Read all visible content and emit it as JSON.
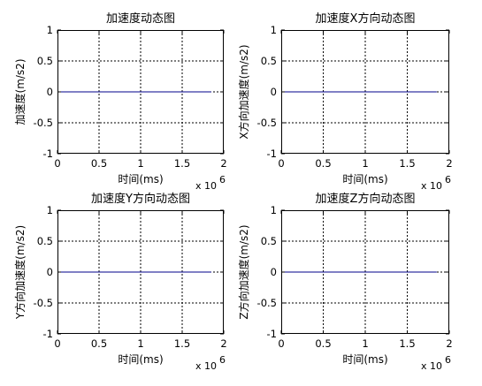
{
  "figure": {
    "background": "#ffffff",
    "line_color": "#00008b"
  },
  "chart_data": [
    {
      "type": "line",
      "title": "加速度动态图",
      "xlabel": "时间(ms)",
      "ylabel": "加速度(m/s2)",
      "x_exponent_label": "x 10",
      "x_exponent_power": "6",
      "xlim": [
        0,
        2000000
      ],
      "ylim": [
        -1,
        1
      ],
      "xticks": [
        "0",
        "0.5",
        "1",
        "1.5",
        "2"
      ],
      "yticks": [
        "1",
        "0.5",
        "0",
        "-0.5",
        "-1"
      ],
      "grid": true,
      "series": [
        {
          "x": [
            0,
            1850000
          ],
          "y": [
            0,
            0
          ],
          "color": "#00008b"
        }
      ]
    },
    {
      "type": "line",
      "title": "加速度X方向动态图",
      "xlabel": "时间(ms)",
      "ylabel": "X方向加速度(m/s2)",
      "x_exponent_label": "x 10",
      "x_exponent_power": "6",
      "xlim": [
        0,
        2000000
      ],
      "ylim": [
        -1,
        1
      ],
      "xticks": [
        "0",
        "0.5",
        "1",
        "1.5",
        "2"
      ],
      "yticks": [
        "1",
        "0.5",
        "0",
        "-0.5",
        "-1"
      ],
      "grid": true,
      "series": [
        {
          "x": [
            0,
            1850000
          ],
          "y": [
            0,
            0
          ],
          "color": "#00008b"
        }
      ]
    },
    {
      "type": "line",
      "title": "加速度Y方向动态图",
      "xlabel": "时间(ms)",
      "ylabel": "Y方向加速度(m/s2)",
      "x_exponent_label": "x 10",
      "x_exponent_power": "6",
      "xlim": [
        0,
        2000000
      ],
      "ylim": [
        -1,
        1
      ],
      "xticks": [
        "0",
        "0.5",
        "1",
        "1.5",
        "2"
      ],
      "yticks": [
        "1",
        "0.5",
        "0",
        "-0.5",
        "-1"
      ],
      "grid": true,
      "series": [
        {
          "x": [
            0,
            1850000
          ],
          "y": [
            0,
            0
          ],
          "color": "#00008b"
        }
      ]
    },
    {
      "type": "line",
      "title": "加速度Z方向动态图",
      "xlabel": "时间(ms)",
      "ylabel": "Z方向加速度(m/s2)",
      "x_exponent_label": "x 10",
      "x_exponent_power": "6",
      "xlim": [
        0,
        2000000
      ],
      "ylim": [
        -1,
        1
      ],
      "xticks": [
        "0",
        "0.5",
        "1",
        "1.5",
        "2"
      ],
      "yticks": [
        "1",
        "0.5",
        "0",
        "-0.5",
        "-1"
      ],
      "grid": true,
      "series": [
        {
          "x": [
            0,
            1850000
          ],
          "y": [
            0,
            0
          ],
          "color": "#00008b"
        }
      ]
    }
  ]
}
